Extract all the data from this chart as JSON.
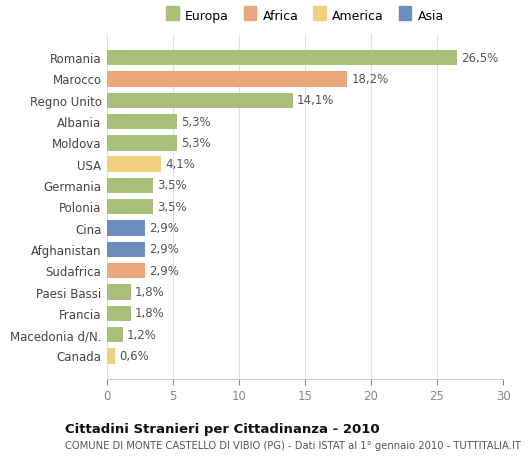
{
  "categories": [
    "Romania",
    "Marocco",
    "Regno Unito",
    "Albania",
    "Moldova",
    "USA",
    "Germania",
    "Polonia",
    "Cina",
    "Afghanistan",
    "Sudafrica",
    "Paesi Bassi",
    "Francia",
    "Macedonia d/N.",
    "Canada"
  ],
  "values": [
    26.5,
    18.2,
    14.1,
    5.3,
    5.3,
    4.1,
    3.5,
    3.5,
    2.9,
    2.9,
    2.9,
    1.8,
    1.8,
    1.2,
    0.6
  ],
  "labels": [
    "26,5%",
    "18,2%",
    "14,1%",
    "5,3%",
    "5,3%",
    "4,1%",
    "3,5%",
    "3,5%",
    "2,9%",
    "2,9%",
    "2,9%",
    "1,8%",
    "1,8%",
    "1,2%",
    "0,6%"
  ],
  "colors": [
    "#a8c07a",
    "#e8a87c",
    "#a8c07a",
    "#a8c07a",
    "#a8c07a",
    "#f0d080",
    "#a8c07a",
    "#a8c07a",
    "#6a8fbf",
    "#6a8fbf",
    "#e8a87c",
    "#a8c07a",
    "#a8c07a",
    "#a8c07a",
    "#f0d080"
  ],
  "legend_labels": [
    "Europa",
    "Africa",
    "America",
    "Asia"
  ],
  "legend_colors": [
    "#a8c07a",
    "#e8a87c",
    "#f0d080",
    "#6a8fbf"
  ],
  "title": "Cittadini Stranieri per Cittadinanza - 2010",
  "subtitle": "COMUNE DI MONTE CASTELLO DI VIBIO (PG) - Dati ISTAT al 1° gennaio 2010 - TUTTITALIA.IT",
  "xlim": [
    0,
    30
  ],
  "xticks": [
    0,
    5,
    10,
    15,
    20,
    25,
    30
  ],
  "background_color": "#ffffff",
  "grid_color": "#e0e0e0",
  "bar_height": 0.72,
  "label_fontsize": 8.5,
  "ytick_fontsize": 8.5,
  "xtick_fontsize": 8.5
}
